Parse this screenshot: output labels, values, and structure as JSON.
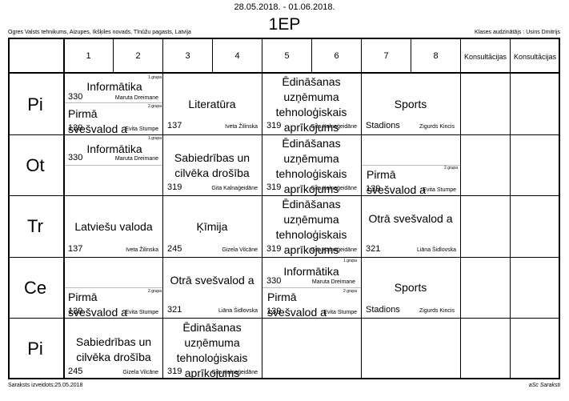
{
  "header": {
    "date_range": "28.05.2018. - 01.06.2018.",
    "school": "Ogres Valsts tehnikums, Aizupes, Ikšķiles novads, Tīnūžu pagasts, Latvija",
    "class_name": "1EP",
    "supervisor": "Klases audzinātājs : Usins Dmitrijs"
  },
  "periods": [
    "1",
    "2",
    "3",
    "4",
    "5",
    "6",
    "7",
    "8",
    "Konsultācijas",
    "Konsultācijas"
  ],
  "days": [
    "Pi",
    "Ot",
    "Tr",
    "Ce",
    "Pi"
  ],
  "lessons": {
    "mon_1": {
      "group": "1.grupa",
      "subject": "Informātika",
      "room": "330",
      "teacher": "Maruta Dreimane"
    },
    "mon_2": {
      "group": "2.grupa",
      "subject": "Pirmā svešvalod a",
      "room": "139",
      "teacher": "Evita Stumpe"
    },
    "mon_3": {
      "subject": "Literatūra",
      "room": "137",
      "teacher": "Iveta Žilinska"
    },
    "mon_4": {
      "subject": "Ēdināšanas uzņēmuma tehnoloģiskais aprīkojums",
      "room": "319",
      "teacher": "Gita Kalnaģeidāne"
    },
    "mon_5": {
      "subject": "Sports",
      "room": "Stadions",
      "teacher": "Zigurds Kincis"
    },
    "tue_1": {
      "group": "1.grupa",
      "subject": "Informātika",
      "room": "330",
      "teacher": "Maruta Dreimane"
    },
    "tue_2": {
      "subject": "Sabiedrības un cilvēka drošība",
      "room": "319",
      "teacher": "Gita Kalnaģeidāne"
    },
    "tue_3": {
      "subject": "Ēdināšanas uzņēmuma tehnoloģiskais aprīkojums",
      "room": "319",
      "teacher": "Gita Kalnaģeidāne"
    },
    "tue_4": {
      "group": "2.grupa",
      "subject": "Pirmā svešvalod a",
      "room": "139",
      "teacher": "Evita Stumpe"
    },
    "wed_1": {
      "subject": "Latviešu valoda",
      "room": "137",
      "teacher": "Iveta Žilinska"
    },
    "wed_2": {
      "subject": "Ķīmija",
      "room": "245",
      "teacher": "Gizela Vilcāne"
    },
    "wed_3": {
      "subject": "Ēdināšanas uzņēmuma tehnoloģiskais aprīkojums",
      "room": "319",
      "teacher": "Gita Kalnaģeidāne"
    },
    "wed_4": {
      "subject": "Otrā svešvalod a",
      "room": "321",
      "teacher": "Liāna Šidlovska"
    },
    "thu_1": {
      "group": "2.grupa",
      "subject": "Pirmā svešvalod a",
      "room": "139",
      "teacher": "Evita Stumpe"
    },
    "thu_2": {
      "subject": "Otrā svešvalod a",
      "room": "321",
      "teacher": "Liāna Šidlovska"
    },
    "thu_3a": {
      "group": "1.grupa",
      "subject": "Informātika",
      "room": "330",
      "teacher": "Maruta Dreimane"
    },
    "thu_3b": {
      "group": "2.grupa",
      "subject": "Pirmā svešvalod a",
      "room": "139",
      "teacher": "Evita Stumpe"
    },
    "thu_4": {
      "subject": "Sports",
      "room": "Stadions",
      "teacher": "Zigurds Kincis"
    },
    "fri_1": {
      "subject": "Sabiedrības un cilvēka drošība",
      "room": "245",
      "teacher": "Gizela Vilcāne"
    },
    "fri_2": {
      "subject": "Ēdināšanas uzņēmuma tehnoloģiskais aprīkojums",
      "room": "319",
      "teacher": "Gita Kalnaģeidāne"
    }
  },
  "footer": {
    "created": "Saraksts izveidots:25.05.2018",
    "brand": "aSc Saraksti"
  }
}
